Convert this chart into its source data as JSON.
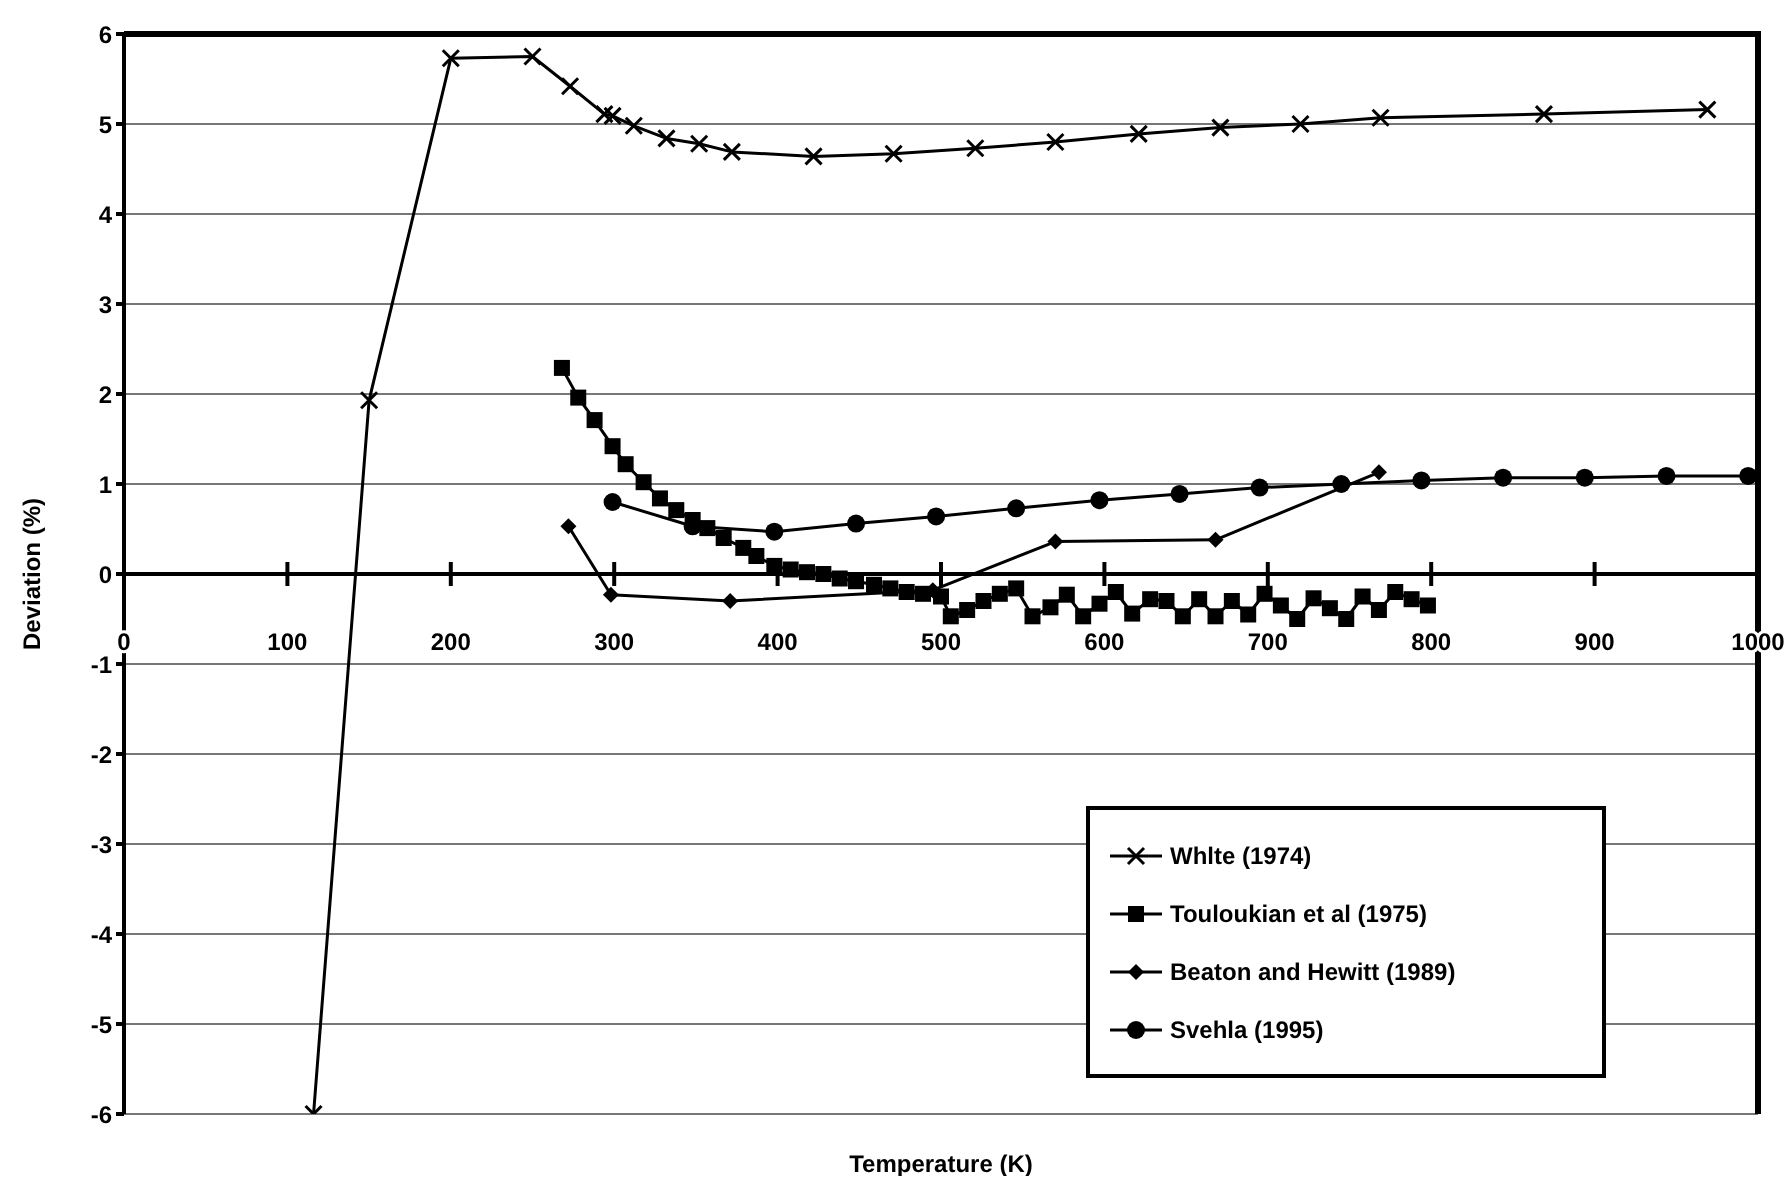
{
  "chart_data": {
    "type": "line",
    "xlabel": "Temperature (K)",
    "ylabel": "Deviation (%)",
    "xlim": [
      0,
      1000
    ],
    "xticks": [
      0,
      100,
      200,
      300,
      400,
      500,
      600,
      700,
      800,
      900,
      1000
    ],
    "ylim": [
      -6,
      6
    ],
    "yticks": [
      -6,
      -5,
      -4,
      -3,
      -2,
      -1,
      0,
      1,
      2,
      3,
      4,
      5,
      6
    ],
    "grid": "y",
    "legend": "bottom right",
    "series": [
      {
        "name": "Whlte (1974)",
        "color": "#000000",
        "marker": "cross",
        "x": [
          116,
          150,
          200,
          250,
          273,
          294,
          299,
          312,
          332,
          352,
          372,
          422,
          471,
          521,
          570,
          621,
          671,
          720,
          769,
          869,
          969
        ],
        "values": [
          -6,
          1.93,
          5.73,
          5.75,
          5.42,
          5.11,
          5.09,
          4.98,
          4.84,
          4.78,
          4.69,
          4.64,
          4.67,
          4.73,
          4.8,
          4.89,
          4.96,
          5.0,
          5.07,
          5.11,
          5.16
        ]
      },
      {
        "name": "Touloukian et al (1975)",
        "color": "#000000",
        "marker": "square",
        "x": [
          268,
          278,
          288,
          299,
          307,
          318,
          328,
          338,
          348,
          357,
          367,
          379,
          387,
          398,
          408,
          418,
          428,
          438,
          448,
          459,
          469,
          479,
          489,
          500,
          506,
          516,
          526,
          536,
          546,
          556,
          567,
          577,
          587,
          597,
          607,
          617,
          628,
          638,
          648,
          658,
          668,
          678,
          688,
          698,
          708,
          718,
          728,
          738,
          748,
          758,
          768,
          778,
          788,
          798
        ],
        "values": [
          2.29,
          1.96,
          1.71,
          1.42,
          1.22,
          1.02,
          0.84,
          0.71,
          0.6,
          0.51,
          0.4,
          0.29,
          0.2,
          0.09,
          0.05,
          0.02,
          0.0,
          -0.05,
          -0.08,
          -0.12,
          -0.16,
          -0.2,
          -0.22,
          -0.25,
          -0.47,
          -0.4,
          -0.3,
          -0.22,
          -0.16,
          -0.47,
          -0.37,
          -0.23,
          -0.47,
          -0.33,
          -0.2,
          -0.44,
          -0.28,
          -0.3,
          -0.47,
          -0.28,
          -0.47,
          -0.3,
          -0.45,
          -0.22,
          -0.35,
          -0.5,
          -0.27,
          -0.38,
          -0.5,
          -0.25,
          -0.4,
          -0.2,
          -0.28,
          -0.35
        ]
      },
      {
        "name": "Beaton and Hewitt (1989)",
        "color": "#000000",
        "marker": "diamond",
        "x": [
          272,
          298,
          371,
          495,
          570,
          668,
          768
        ],
        "values": [
          0.53,
          -0.23,
          -0.3,
          -0.18,
          0.36,
          0.38,
          1.13
        ]
      },
      {
        "name": "Svehla (1995)",
        "color": "#000000",
        "marker": "circle",
        "x": [
          299,
          348,
          398,
          448,
          497,
          546,
          597,
          646,
          695,
          745,
          794,
          844,
          894,
          944,
          994
        ],
        "values": [
          0.8,
          0.53,
          0.47,
          0.56,
          0.64,
          0.73,
          0.82,
          0.89,
          0.96,
          1.0,
          1.04,
          1.07,
          1.07,
          1.09,
          1.09
        ]
      }
    ]
  }
}
